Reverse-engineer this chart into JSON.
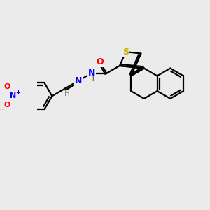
{
  "background_color": "#ebebeb",
  "bond_color": "#000000",
  "bond_width": 1.6,
  "atom_colors": {
    "S": "#ccaa00",
    "O": "#ff0000",
    "N": "#0000ff",
    "H": "#444444",
    "C": "#000000"
  },
  "font_size_big": 9,
  "font_size_small": 7.5,
  "figsize": [
    3.0,
    3.0
  ],
  "dpi": 100
}
